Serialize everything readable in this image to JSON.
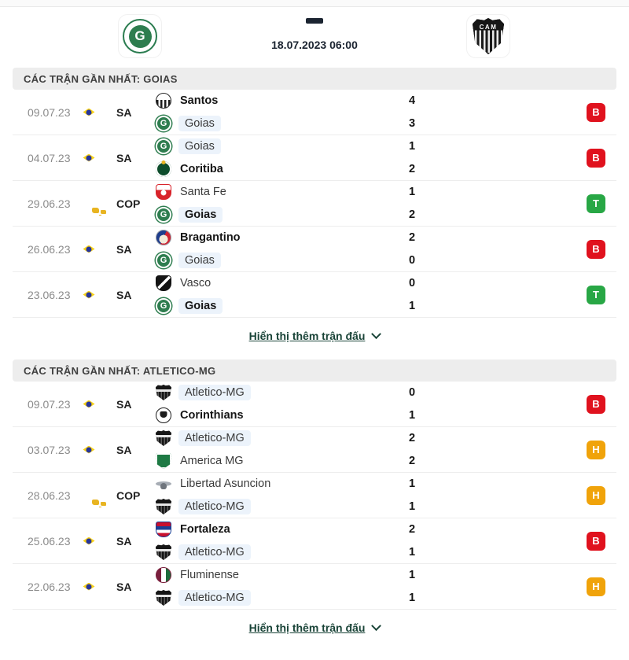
{
  "header": {
    "home_team_icon": "goias-logo",
    "away_team_icon": "atletico-mg-logo",
    "away_logo_text": "CAM",
    "goias_letter": "G",
    "score_placeholder": "-",
    "datetime": "18.07.2023 06:00"
  },
  "show_more": {
    "label": "Hiển thị thêm trận đấu"
  },
  "result_badges": {
    "B": {
      "color": "#e0121e",
      "label": "B"
    },
    "T": {
      "color": "#28a745",
      "label": "T"
    },
    "H": {
      "color": "#f0a30a",
      "label": "H"
    }
  },
  "colors": {
    "highlight_pill": "#ecf3fb",
    "link": "#1a4438",
    "section_bar_bg": "#ededed",
    "date_text": "#8b8b8b"
  },
  "sections": [
    {
      "title": "CÁC TRẬN GẦN NHẤT: GOIAS",
      "matches": [
        {
          "date": "09.07.23",
          "flag": "brazil",
          "competition": "SA",
          "home": {
            "name": "Santos",
            "icon": "santos-logo",
            "bold": true,
            "highlight": false,
            "score": "4"
          },
          "away": {
            "name": "Goias",
            "icon": "goias-logo",
            "bold": false,
            "highlight": true,
            "score": "3"
          },
          "result": "B"
        },
        {
          "date": "04.07.23",
          "flag": "brazil",
          "competition": "SA",
          "home": {
            "name": "Goias",
            "icon": "goias-logo",
            "bold": false,
            "highlight": true,
            "score": "1"
          },
          "away": {
            "name": "Coritiba",
            "icon": "coritiba-logo",
            "bold": true,
            "highlight": false,
            "score": "2"
          },
          "result": "B"
        },
        {
          "date": "29.06.23",
          "flag": "conmebol",
          "competition": "COP",
          "home": {
            "name": "Santa Fe",
            "icon": "santa-fe-logo",
            "bold": false,
            "highlight": false,
            "score": "1"
          },
          "away": {
            "name": "Goias",
            "icon": "goias-logo",
            "bold": true,
            "highlight": true,
            "score": "2"
          },
          "result": "T"
        },
        {
          "date": "26.06.23",
          "flag": "brazil",
          "competition": "SA",
          "home": {
            "name": "Bragantino",
            "icon": "bragantino-logo",
            "bold": true,
            "highlight": false,
            "score": "2"
          },
          "away": {
            "name": "Goias",
            "icon": "goias-logo",
            "bold": false,
            "highlight": true,
            "score": "0"
          },
          "result": "B"
        },
        {
          "date": "23.06.23",
          "flag": "brazil",
          "competition": "SA",
          "home": {
            "name": "Vasco",
            "icon": "vasco-logo",
            "bold": false,
            "highlight": false,
            "score": "0"
          },
          "away": {
            "name": "Goias",
            "icon": "goias-logo",
            "bold": true,
            "highlight": true,
            "score": "1"
          },
          "result": "T"
        }
      ]
    },
    {
      "title": "CÁC TRẬN GẦN NHẤT: ATLETICO-MG",
      "matches": [
        {
          "date": "09.07.23",
          "flag": "brazil",
          "competition": "SA",
          "home": {
            "name": "Atletico-MG",
            "icon": "atletico-mg-logo",
            "bold": false,
            "highlight": true,
            "score": "0"
          },
          "away": {
            "name": "Corinthians",
            "icon": "corinthians-logo",
            "bold": true,
            "highlight": false,
            "score": "1"
          },
          "result": "B"
        },
        {
          "date": "03.07.23",
          "flag": "brazil",
          "competition": "SA",
          "home": {
            "name": "Atletico-MG",
            "icon": "atletico-mg-logo",
            "bold": false,
            "highlight": true,
            "score": "2"
          },
          "away": {
            "name": "America MG",
            "icon": "america-mg-logo",
            "bold": false,
            "highlight": false,
            "score": "2"
          },
          "result": "H"
        },
        {
          "date": "28.06.23",
          "flag": "conmebol",
          "competition": "COP",
          "home": {
            "name": "Libertad Asuncion",
            "icon": "libertad-logo",
            "bold": false,
            "highlight": false,
            "score": "1"
          },
          "away": {
            "name": "Atletico-MG",
            "icon": "atletico-mg-logo",
            "bold": false,
            "highlight": true,
            "score": "1"
          },
          "result": "H"
        },
        {
          "date": "25.06.23",
          "flag": "brazil",
          "competition": "SA",
          "home": {
            "name": "Fortaleza",
            "icon": "fortaleza-logo",
            "bold": true,
            "highlight": false,
            "score": "2"
          },
          "away": {
            "name": "Atletico-MG",
            "icon": "atletico-mg-logo",
            "bold": false,
            "highlight": true,
            "score": "1"
          },
          "result": "B"
        },
        {
          "date": "22.06.23",
          "flag": "brazil",
          "competition": "SA",
          "home": {
            "name": "Fluminense",
            "icon": "fluminense-logo",
            "bold": false,
            "highlight": false,
            "score": "1"
          },
          "away": {
            "name": "Atletico-MG",
            "icon": "atletico-mg-logo",
            "bold": false,
            "highlight": true,
            "score": "1"
          },
          "result": "H"
        }
      ]
    }
  ]
}
